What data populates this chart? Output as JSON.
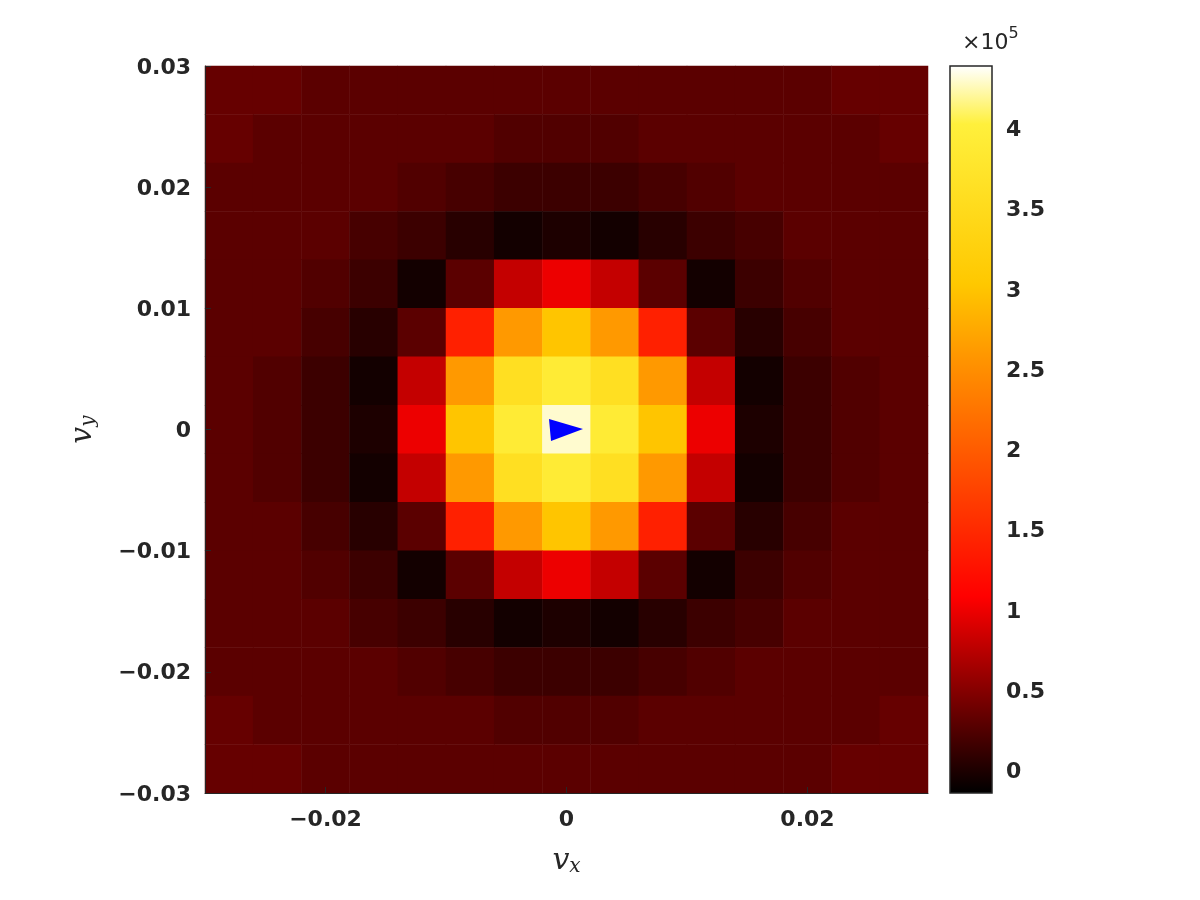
{
  "chart_data": {
    "type": "heatmap",
    "xlabel": "v$_{x}$",
    "ylabel": "v$_{y}$",
    "annotations": [
      "×10$^{5}$"
    ],
    "xlim": [
      -0.03,
      0.03
    ],
    "xticks": [
      {
        "value": -0.02,
        "label": "−0.02"
      },
      0,
      0.02
    ],
    "ylim": [
      -0.03,
      0.03
    ],
    "yticks": [
      {
        "value": -0.03,
        "label": "−0.03"
      },
      {
        "value": -0.02,
        "label": "−0.02"
      },
      {
        "value": -0.01,
        "label": "−0.01"
      },
      0,
      0.01,
      0.02,
      0.03
    ],
    "clim": [
      -0.14,
      4.39
    ],
    "cticks": [
      0,
      0.5,
      1,
      1.5,
      2,
      2.5,
      3,
      3.5,
      4
    ],
    "cells": [
      [
        0.35,
        0.35,
        0.3,
        0.3,
        0.3,
        0.3,
        0.3,
        0.3,
        0.3,
        0.3,
        0.3,
        0.3,
        0.3,
        0.35,
        0.35
      ],
      [
        0.35,
        0.3,
        0.3,
        0.3,
        0.3,
        0.3,
        0.25,
        0.25,
        0.25,
        0.3,
        0.3,
        0.3,
        0.3,
        0.3,
        0.35
      ],
      [
        0.3,
        0.3,
        0.3,
        0.3,
        0.25,
        0.2,
        0.15,
        0.15,
        0.15,
        0.2,
        0.25,
        0.3,
        0.3,
        0.3,
        0.3
      ],
      [
        0.3,
        0.3,
        0.3,
        0.2,
        0.15,
        0.05,
        -0.05,
        0,
        -0.05,
        0.05,
        0.15,
        0.2,
        0.3,
        0.3,
        0.3
      ],
      [
        0.3,
        0.3,
        0.25,
        0.15,
        -0.05,
        0.3,
        0.8,
        1,
        0.8,
        0.3,
        -0.05,
        0.15,
        0.25,
        0.3,
        0.3
      ],
      [
        0.3,
        0.3,
        0.2,
        0.05,
        0.3,
        1.4,
        2.6,
        3,
        2.6,
        1.4,
        0.3,
        0.05,
        0.2,
        0.3,
        0.3
      ],
      [
        0.3,
        0.25,
        0.15,
        -0.05,
        0.8,
        2.6,
        3.6,
        3.9,
        3.6,
        2.6,
        0.8,
        -0.05,
        0.15,
        0.25,
        0.3
      ],
      [
        0.3,
        0.25,
        0.15,
        0,
        1,
        3,
        3.9,
        4.3,
        3.9,
        3,
        1,
        0,
        0.15,
        0.25,
        0.3
      ],
      [
        0.3,
        0.25,
        0.15,
        -0.05,
        0.8,
        2.6,
        3.6,
        3.9,
        3.6,
        2.6,
        0.8,
        -0.05,
        0.15,
        0.25,
        0.3
      ],
      [
        0.3,
        0.3,
        0.2,
        0.05,
        0.3,
        1.4,
        2.6,
        3,
        2.6,
        1.4,
        0.3,
        0.05,
        0.2,
        0.3,
        0.3
      ],
      [
        0.3,
        0.3,
        0.25,
        0.15,
        -0.05,
        0.3,
        0.8,
        1,
        0.8,
        0.3,
        -0.05,
        0.15,
        0.25,
        0.3,
        0.3
      ],
      [
        0.3,
        0.3,
        0.3,
        0.2,
        0.15,
        0.05,
        -0.05,
        0,
        -0.05,
        0.05,
        0.15,
        0.2,
        0.3,
        0.3,
        0.3
      ],
      [
        0.3,
        0.3,
        0.3,
        0.3,
        0.25,
        0.2,
        0.15,
        0.15,
        0.15,
        0.2,
        0.25,
        0.3,
        0.3,
        0.3,
        0.3
      ],
      [
        0.35,
        0.3,
        0.3,
        0.3,
        0.3,
        0.3,
        0.25,
        0.25,
        0.25,
        0.3,
        0.3,
        0.3,
        0.3,
        0.3,
        0.35
      ],
      [
        0.35,
        0.35,
        0.3,
        0.3,
        0.3,
        0.3,
        0.3,
        0.3,
        0.3,
        0.3,
        0.3,
        0.3,
        0.3,
        0.35,
        0.35
      ]
    ]
  }
}
